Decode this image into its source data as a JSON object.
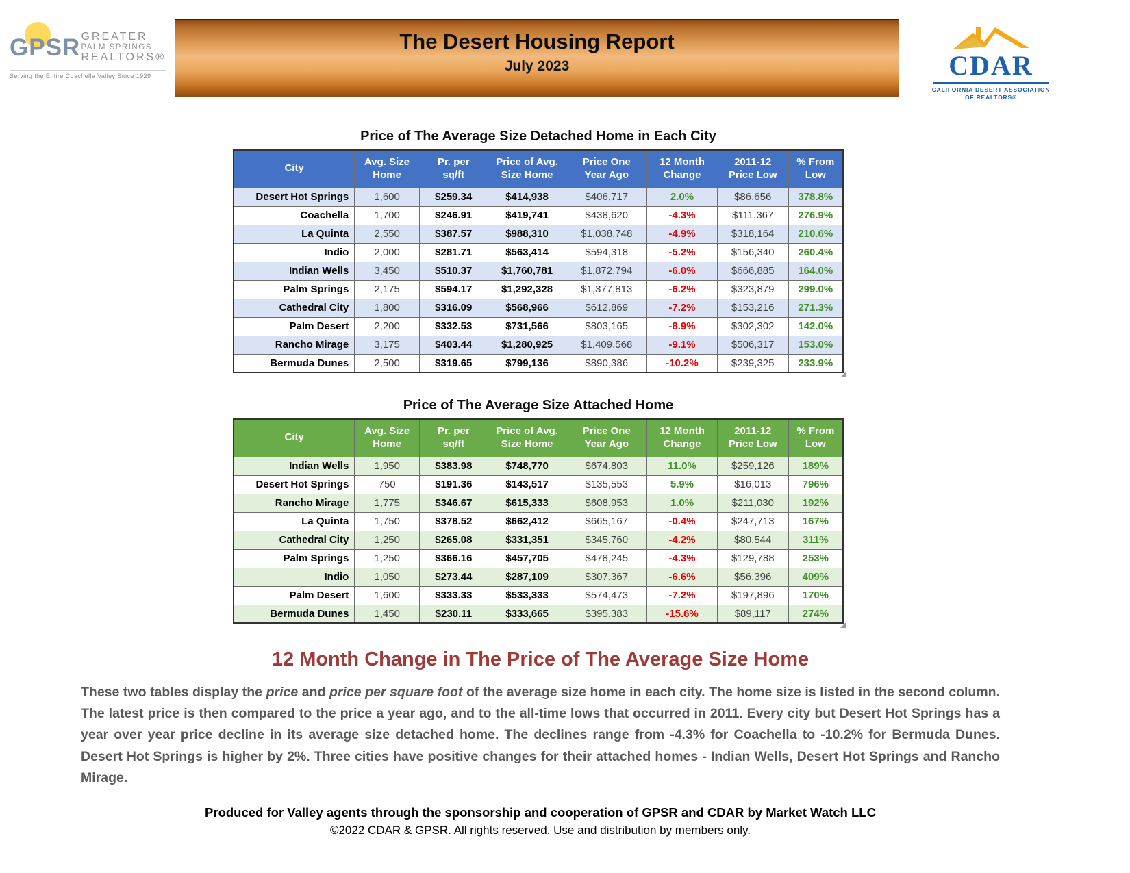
{
  "header": {
    "banner_title": "The Desert Housing Report",
    "banner_subtitle": "July 2023",
    "gpsr_logo": {
      "acronym": "GPSR",
      "word1": "GREATER",
      "word2": "PALM SPRINGS",
      "word3": "REALTORS®",
      "tagline": "Serving the Entire Coachella Valley Since 1929"
    },
    "cdar_logo": {
      "name": "CDAR",
      "line1": "CALIFORNIA DESERT ASSOCIATION",
      "line2": "OF REALTORS®"
    }
  },
  "detached_table": {
    "title": "Price of The Average Size Detached Home in Each City",
    "columns": [
      {
        "l1": "City",
        "l2": ""
      },
      {
        "l1": "Avg. Size",
        "l2": "Home"
      },
      {
        "l1": "Pr. per",
        "l2": "sq/ft"
      },
      {
        "l1": "Price of Avg.",
        "l2": "Size Home"
      },
      {
        "l1": "Price One",
        "l2": "Year Ago"
      },
      {
        "l1": "12 Month",
        "l2": "Change"
      },
      {
        "l1": "2011-12",
        "l2": "Price Low"
      },
      {
        "l1": "% From",
        "l2": "Low"
      }
    ],
    "rows": [
      {
        "city": "Desert Hot Springs",
        "size": "1,600",
        "ppsf": "$259.34",
        "price": "$414,938",
        "year_ago": "$406,717",
        "change": "2.0%",
        "low": "$86,656",
        "from_low": "378.8%"
      },
      {
        "city": "Coachella",
        "size": "1,700",
        "ppsf": "$246.91",
        "price": "$419,741",
        "year_ago": "$438,620",
        "change": "-4.3%",
        "low": "$111,367",
        "from_low": "276.9%"
      },
      {
        "city": "La Quinta",
        "size": "2,550",
        "ppsf": "$387.57",
        "price": "$988,310",
        "year_ago": "$1,038,748",
        "change": "-4.9%",
        "low": "$318,164",
        "from_low": "210.6%"
      },
      {
        "city": "Indio",
        "size": "2,000",
        "ppsf": "$281.71",
        "price": "$563,414",
        "year_ago": "$594,318",
        "change": "-5.2%",
        "low": "$156,340",
        "from_low": "260.4%"
      },
      {
        "city": "Indian Wells",
        "size": "3,450",
        "ppsf": "$510.37",
        "price": "$1,760,781",
        "year_ago": "$1,872,794",
        "change": "-6.0%",
        "low": "$666,885",
        "from_low": "164.0%"
      },
      {
        "city": "Palm Springs",
        "size": "2,175",
        "ppsf": "$594.17",
        "price": "$1,292,328",
        "year_ago": "$1,377,813",
        "change": "-6.2%",
        "low": "$323,879",
        "from_low": "299.0%"
      },
      {
        "city": "Cathedral City",
        "size": "1,800",
        "ppsf": "$316.09",
        "price": "$568,966",
        "year_ago": "$612,869",
        "change": "-7.2%",
        "low": "$153,216",
        "from_low": "271.3%"
      },
      {
        "city": "Palm Desert",
        "size": "2,200",
        "ppsf": "$332.53",
        "price": "$731,566",
        "year_ago": "$803,165",
        "change": "-8.9%",
        "low": "$302,302",
        "from_low": "142.0%"
      },
      {
        "city": "Rancho Mirage",
        "size": "3,175",
        "ppsf": "$403.44",
        "price": "$1,280,925",
        "year_ago": "$1,409,568",
        "change": "-9.1%",
        "low": "$506,317",
        "from_low": "153.0%"
      },
      {
        "city": "Bermuda Dunes",
        "size": "2,500",
        "ppsf": "$319.65",
        "price": "$799,136",
        "year_ago": "$890,386",
        "change": "-10.2%",
        "low": "$239,325",
        "from_low": "233.9%"
      }
    ]
  },
  "attached_table": {
    "title": "Price of The Average Size Attached Home",
    "columns": [
      {
        "l1": "City",
        "l2": ""
      },
      {
        "l1": "Avg. Size",
        "l2": "Home"
      },
      {
        "l1": "Pr. per",
        "l2": "sq/ft"
      },
      {
        "l1": "Price of Avg.",
        "l2": "Size Home"
      },
      {
        "l1": "Price One",
        "l2": "Year Ago"
      },
      {
        "l1": "12 Month",
        "l2": "Change"
      },
      {
        "l1": "2011-12",
        "l2": "Price Low"
      },
      {
        "l1": "% From",
        "l2": "Low"
      }
    ],
    "rows": [
      {
        "city": "Indian Wells",
        "size": "1,950",
        "ppsf": "$383.98",
        "price": "$748,770",
        "year_ago": "$674,803",
        "change": "11.0%",
        "low": "$259,126",
        "from_low": "189%"
      },
      {
        "city": "Desert Hot Springs",
        "size": "750",
        "ppsf": "$191.36",
        "price": "$143,517",
        "year_ago": "$135,553",
        "change": "5.9%",
        "low": "$16,013",
        "from_low": "796%"
      },
      {
        "city": "Rancho Mirage",
        "size": "1,775",
        "ppsf": "$346.67",
        "price": "$615,333",
        "year_ago": "$608,953",
        "change": "1.0%",
        "low": "$211,030",
        "from_low": "192%"
      },
      {
        "city": "La Quinta",
        "size": "1,750",
        "ppsf": "$378.52",
        "price": "$662,412",
        "year_ago": "$665,167",
        "change": "-0.4%",
        "low": "$247,713",
        "from_low": "167%"
      },
      {
        "city": "Cathedral City",
        "size": "1,250",
        "ppsf": "$265.08",
        "price": "$331,351",
        "year_ago": "$345,760",
        "change": "-4.2%",
        "low": "$80,544",
        "from_low": "311%"
      },
      {
        "city": "Palm Springs",
        "size": "1,250",
        "ppsf": "$366.16",
        "price": "$457,705",
        "year_ago": "$478,245",
        "change": "-4.3%",
        "low": "$129,788",
        "from_low": "253%"
      },
      {
        "city": "Indio",
        "size": "1,050",
        "ppsf": "$273.44",
        "price": "$287,109",
        "year_ago": "$307,367",
        "change": "-6.6%",
        "low": "$56,396",
        "from_low": "409%"
      },
      {
        "city": "Palm Desert",
        "size": "1,600",
        "ppsf": "$333.33",
        "price": "$533,333",
        "year_ago": "$574,473",
        "change": "-7.2%",
        "low": "$197,896",
        "from_low": "170%"
      },
      {
        "city": "Bermuda Dunes",
        "size": "1,450",
        "ppsf": "$230.11",
        "price": "$333,665",
        "year_ago": "$395,383",
        "change": "-15.6%",
        "low": "$89,117",
        "from_low": "274%"
      }
    ]
  },
  "narrative": {
    "heading": "12 Month Change in The Price of The Average Size Home",
    "p_seg1": "These two tables display the ",
    "p_ital1": "price",
    "p_seg2": " and ",
    "p_ital2": "price per square foot",
    "p_seg3": " of the average size home in each city. The home size is listed in the second column. The latest price is then compared to the price a year ago, and to the all-time lows that occurred in 2011. Every city but Desert Hot Springs has a year over year price decline in its average size detached home. The declines range from -4.3% for Coachella to -10.2% for Bermuda Dunes. Desert Hot Springs is higher by 2%. Three cities have positive changes for their attached homes - Indian Wells, Desert Hot Springs and Rancho Mirage."
  },
  "footer": {
    "line1": "Produced for Valley agents through the sponsorship and cooperation of GPSR and CDAR by Market Watch LLC",
    "line2": "©2022 CDAR & GPSR.  All rights reserved.  Use and distribution by members only."
  },
  "colors": {
    "detached_header": "#4472c4",
    "detached_stripe": "#dae3f3",
    "attached_header": "#6aab4a",
    "attached_stripe": "#e2efda",
    "positive": "#3f8f29",
    "negative": "#e60000",
    "section_heading": "#9e3a38",
    "body_text": "#595959"
  }
}
